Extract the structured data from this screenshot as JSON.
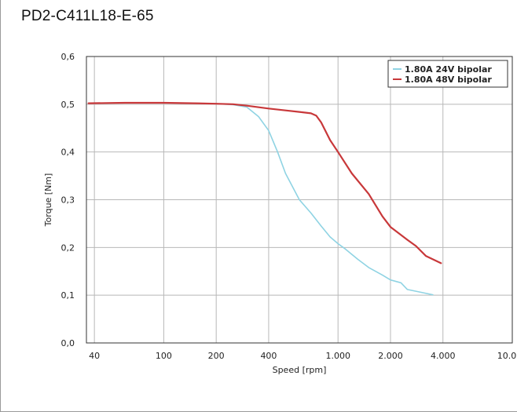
{
  "page": {
    "title": "PD2-C411L18-E-65"
  },
  "chart_data": {
    "type": "line",
    "title": "PD2-C411L18-E-65",
    "xlabel": "Speed [rpm]",
    "ylabel": "Torque [Nm]",
    "x_scale": "log",
    "xlim": [
      36,
      10000
    ],
    "ylim": [
      0,
      0.6
    ],
    "grid": true,
    "legend_position": "top-right",
    "x_ticks": [
      {
        "value": 40,
        "label": "40"
      },
      {
        "value": 100,
        "label": "100"
      },
      {
        "value": 200,
        "label": "200"
      },
      {
        "value": 400,
        "label": "400"
      },
      {
        "value": 1000,
        "label": "1.000"
      },
      {
        "value": 2000,
        "label": "2.000"
      },
      {
        "value": 4000,
        "label": "4.000"
      },
      {
        "value": 10000,
        "label": "10.000"
      }
    ],
    "y_ticks": [
      {
        "value": 0,
        "label": "0,0"
      },
      {
        "value": 0.1,
        "label": "0,1"
      },
      {
        "value": 0.2,
        "label": "0,2"
      },
      {
        "value": 0.3,
        "label": "0,3"
      },
      {
        "value": 0.4,
        "label": "0,4"
      },
      {
        "value": 0.5,
        "label": "0,5"
      },
      {
        "value": 0.6,
        "label": "0,6"
      }
    ],
    "series": [
      {
        "name": "1.80A 24V bipolar",
        "color": "#8fd3e3",
        "x": [
          37,
          60,
          100,
          150,
          200,
          250,
          300,
          350,
          400,
          450,
          500,
          600,
          700,
          800,
          900,
          1000,
          1100,
          1300,
          1500,
          1800,
          2000,
          2300,
          2500,
          3000,
          3500
        ],
        "y": [
          0.502,
          0.503,
          0.503,
          0.502,
          0.501,
          0.499,
          0.494,
          0.474,
          0.445,
          0.4,
          0.355,
          0.3,
          0.272,
          0.245,
          0.222,
          0.208,
          0.197,
          0.175,
          0.158,
          0.142,
          0.132,
          0.126,
          0.112,
          0.106,
          0.101
        ]
      },
      {
        "name": "1.80A 48V bipolar",
        "color": "#c8383a",
        "x": [
          37,
          60,
          100,
          150,
          200,
          250,
          300,
          400,
          500,
          600,
          700,
          750,
          800,
          900,
          1000,
          1200,
          1500,
          1800,
          2000,
          2500,
          2800,
          3200,
          3900
        ],
        "y": [
          0.502,
          0.503,
          0.503,
          0.502,
          0.501,
          0.5,
          0.497,
          0.491,
          0.487,
          0.484,
          0.481,
          0.476,
          0.462,
          0.425,
          0.4,
          0.355,
          0.312,
          0.265,
          0.243,
          0.216,
          0.203,
          0.182,
          0.167
        ]
      }
    ]
  }
}
